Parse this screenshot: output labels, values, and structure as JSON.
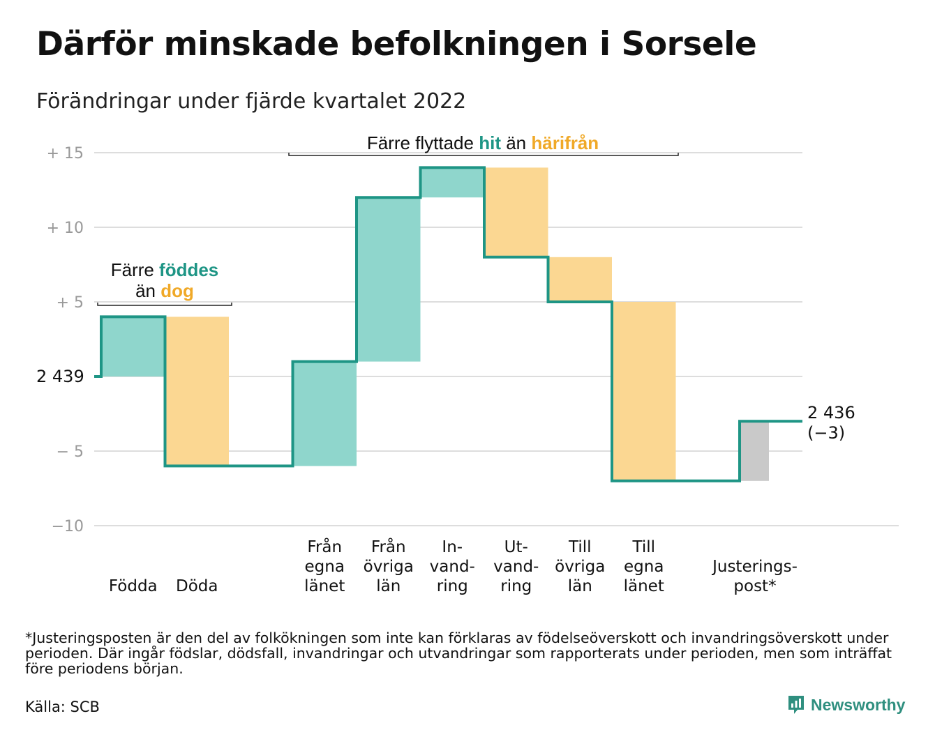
{
  "title": "Därför minskade befolkningen i Sorsele",
  "subtitle": "Förändringar under fjärde kvartalet 2022",
  "chart_data": {
    "type": "waterfall",
    "ylim": [
      -10,
      16
    ],
    "yticks": [
      {
        "value": 15,
        "label": "+ 15"
      },
      {
        "value": 10,
        "label": "+ 10"
      },
      {
        "value": 5,
        "label": "+ 5"
      },
      {
        "value": -5,
        "label": "− 5"
      },
      {
        "value": -10,
        "label": "−10"
      }
    ],
    "start_label": "2 439",
    "end_label": [
      "2 436",
      "(−3)"
    ],
    "steps": [
      {
        "name": "Födda",
        "label_lines": [
          "Födda"
        ],
        "from": 0,
        "to": 4,
        "kind": "increase"
      },
      {
        "name": "Döda",
        "label_lines": [
          "Döda"
        ],
        "from": 4,
        "to": -6,
        "kind": "decrease"
      },
      {
        "name": "Från egna länet",
        "label_lines": [
          "Från",
          "egna",
          "länet"
        ],
        "from": -6,
        "to": 1,
        "kind": "increase"
      },
      {
        "name": "Från övriga län",
        "label_lines": [
          "Från",
          "övriga",
          "län"
        ],
        "from": 1,
        "to": 12,
        "kind": "increase"
      },
      {
        "name": "Invandring",
        "label_lines": [
          "In-",
          "vand-",
          "ring"
        ],
        "from": 12,
        "to": 14,
        "kind": "increase"
      },
      {
        "name": "Utvandring",
        "label_lines": [
          "Ut-",
          "vand-",
          "ring"
        ],
        "from": 14,
        "to": 8,
        "kind": "decrease"
      },
      {
        "name": "Till övriga län",
        "label_lines": [
          "Till",
          "övriga",
          "län"
        ],
        "from": 8,
        "to": 5,
        "kind": "decrease"
      },
      {
        "name": "Till egna länet",
        "label_lines": [
          "Till",
          "egna",
          "länet"
        ],
        "from": 5,
        "to": -7,
        "kind": "decrease"
      },
      {
        "name": "Justeringspost*",
        "label_lines": [
          "Justerings-",
          "post*"
        ],
        "from": -7,
        "to": -3,
        "kind": "adjustment"
      }
    ],
    "annotations": [
      {
        "parts": [
          {
            "text": "Färre ",
            "role": "plain"
          },
          {
            "text": "föddes",
            "role": "inflow"
          }
        ]
      },
      {
        "parts": [
          {
            "text": "än ",
            "role": "plain"
          },
          {
            "text": "dog",
            "role": "outflow"
          }
        ]
      },
      {
        "parts": [
          {
            "text": "Färre flyttade ",
            "role": "plain"
          },
          {
            "text": "hit",
            "role": "inflow"
          },
          {
            "text": " än ",
            "role": "plain"
          },
          {
            "text": "härifrån",
            "role": "outflow"
          }
        ]
      }
    ],
    "colors": {
      "increase_fill": "#8fd6cc",
      "decrease_fill": "#fbd792",
      "adjustment_fill": "#c9c9c9",
      "step_line": "#1e9585",
      "inflow_text": "#1e9585",
      "outflow_text": "#f0a928",
      "grid": "#dddddd",
      "tick_text": "#999999"
    }
  },
  "footnote": "*Justeringsposten är den del av folkökningen som inte kan förklaras av födelseöverskott och invandringsöverskott under perioden. Där ingår födslar, dödsfall, invandringar och utvandringar som rapporterats under perioden, men som inträffat före periodens början.",
  "source": "Källa: SCB",
  "brand": {
    "name": "Newsworthy",
    "icon": "newsworthy-chart-icon"
  }
}
